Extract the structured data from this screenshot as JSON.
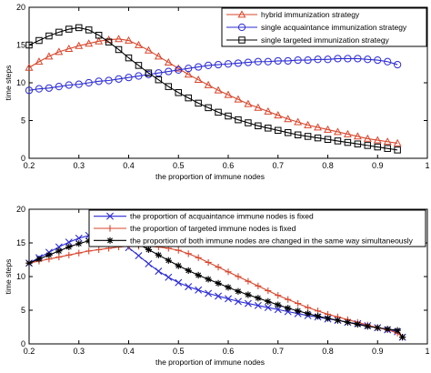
{
  "chart_data": [
    {
      "type": "line",
      "xlabel": "the proportion of immune nodes",
      "ylabel": "time steps",
      "xlim": [
        0.2,
        1.0
      ],
      "ylim": [
        0,
        20
      ],
      "xticks": [
        "0.2",
        "0.3",
        "0.4",
        "0.5",
        "0.6",
        "0.7",
        "0.8",
        "0.9",
        "1"
      ],
      "yticks": [
        "0",
        "5",
        "10",
        "15",
        "20"
      ],
      "grid": false,
      "legend_position": "top-right",
      "x": [
        0.2,
        0.22,
        0.24,
        0.26,
        0.28,
        0.3,
        0.32,
        0.34,
        0.36,
        0.38,
        0.4,
        0.42,
        0.44,
        0.46,
        0.48,
        0.5,
        0.52,
        0.54,
        0.56,
        0.58,
        0.6,
        0.62,
        0.64,
        0.66,
        0.68,
        0.7,
        0.72,
        0.74,
        0.76,
        0.78,
        0.8,
        0.82,
        0.84,
        0.86,
        0.88,
        0.9,
        0.92,
        0.94
      ],
      "series": [
        {
          "name": "hybrid immunization strategy",
          "color": "#d9452b",
          "marker": "triangle",
          "values": [
            12.0,
            12.8,
            13.5,
            14.1,
            14.5,
            14.9,
            15.2,
            15.5,
            15.7,
            15.8,
            15.6,
            15.0,
            14.3,
            13.5,
            12.7,
            11.9,
            11.1,
            10.4,
            9.7,
            9.0,
            8.4,
            7.8,
            7.2,
            6.7,
            6.2,
            5.7,
            5.2,
            4.8,
            4.4,
            4.1,
            3.8,
            3.5,
            3.2,
            2.9,
            2.6,
            2.4,
            2.2,
            2.0
          ]
        },
        {
          "name": "single acquaintance immunization strategy",
          "color": "#2a2ad6",
          "marker": "circle",
          "values": [
            9.0,
            9.2,
            9.3,
            9.5,
            9.7,
            9.8,
            10.0,
            10.2,
            10.3,
            10.5,
            10.7,
            10.9,
            11.1,
            11.3,
            11.5,
            11.7,
            11.9,
            12.1,
            12.3,
            12.4,
            12.5,
            12.6,
            12.7,
            12.8,
            12.8,
            12.9,
            12.9,
            13.0,
            13.0,
            13.1,
            13.1,
            13.2,
            13.2,
            13.2,
            13.1,
            13.0,
            12.8,
            12.4
          ]
        },
        {
          "name": "single targeted immunization strategy",
          "color": "#000000",
          "marker": "square",
          "values": [
            15.0,
            15.6,
            16.2,
            16.7,
            17.1,
            17.3,
            17.0,
            16.3,
            15.4,
            14.4,
            13.3,
            12.3,
            11.3,
            10.4,
            9.5,
            8.7,
            8.0,
            7.3,
            6.7,
            6.1,
            5.6,
            5.1,
            4.7,
            4.3,
            4.0,
            3.7,
            3.4,
            3.1,
            2.9,
            2.7,
            2.5,
            2.3,
            2.1,
            1.9,
            1.7,
            1.5,
            1.3,
            1.1
          ]
        }
      ]
    },
    {
      "type": "line",
      "xlabel": "the proportion of immune nodes",
      "ylabel": "time steps",
      "xlim": [
        0.2,
        1.0
      ],
      "ylim": [
        0,
        20
      ],
      "xticks": [
        "0.2",
        "0.3",
        "0.4",
        "0.5",
        "0.6",
        "0.7",
        "0.8",
        "0.9",
        "1"
      ],
      "yticks": [
        "0",
        "5",
        "10",
        "15",
        "20"
      ],
      "grid": false,
      "legend_position": "top",
      "x": [
        0.2,
        0.22,
        0.24,
        0.26,
        0.28,
        0.3,
        0.32,
        0.34,
        0.36,
        0.38,
        0.4,
        0.42,
        0.44,
        0.46,
        0.48,
        0.5,
        0.52,
        0.54,
        0.56,
        0.58,
        0.6,
        0.62,
        0.64,
        0.66,
        0.68,
        0.7,
        0.72,
        0.74,
        0.76,
        0.78,
        0.8,
        0.82,
        0.84,
        0.86,
        0.88,
        0.9,
        0.92,
        0.94,
        0.95
      ],
      "series": [
        {
          "name": "the proportion of acquaintance immune nodes is fixed",
          "color": "#2a2ad6",
          "marker": "x",
          "values": [
            12.0,
            12.8,
            13.6,
            14.4,
            15.1,
            15.7,
            16.1,
            16.3,
            16.0,
            15.3,
            14.3,
            13.1,
            11.9,
            10.8,
            9.9,
            9.1,
            8.5,
            8.0,
            7.5,
            7.1,
            6.7,
            6.3,
            6.0,
            5.7,
            5.4,
            5.1,
            4.8,
            4.5,
            4.2,
            4.0,
            3.7,
            3.5,
            3.2,
            3.0,
            2.7,
            2.4,
            2.1,
            1.8,
            1.0
          ]
        },
        {
          "name": "the proportion of targeted immune nodes is fixed",
          "color": "#d9452b",
          "marker": "plus",
          "values": [
            12.0,
            12.3,
            12.6,
            12.9,
            13.2,
            13.5,
            13.8,
            14.0,
            14.2,
            14.4,
            14.5,
            14.5,
            14.5,
            14.4,
            14.2,
            13.9,
            13.4,
            12.8,
            12.1,
            11.4,
            10.7,
            10.0,
            9.3,
            8.6,
            7.9,
            7.2,
            6.6,
            6.0,
            5.4,
            4.9,
            4.4,
            4.0,
            3.6,
            3.2,
            2.8,
            2.4,
            2.1,
            1.6,
            1.0
          ]
        },
        {
          "name": "the proportion of both immune nodes are changed in the same way simultaneously",
          "color": "#000000",
          "marker": "star",
          "values": [
            12.0,
            12.6,
            13.2,
            13.8,
            14.4,
            14.9,
            15.3,
            15.6,
            15.8,
            15.9,
            15.5,
            14.8,
            14.0,
            13.2,
            12.4,
            11.6,
            10.9,
            10.2,
            9.6,
            9.0,
            8.4,
            7.8,
            7.3,
            6.8,
            6.3,
            5.8,
            5.3,
            4.9,
            4.5,
            4.1,
            3.8,
            3.5,
            3.2,
            2.9,
            2.6,
            2.4,
            2.2,
            2.0,
            1.0
          ]
        }
      ]
    }
  ]
}
